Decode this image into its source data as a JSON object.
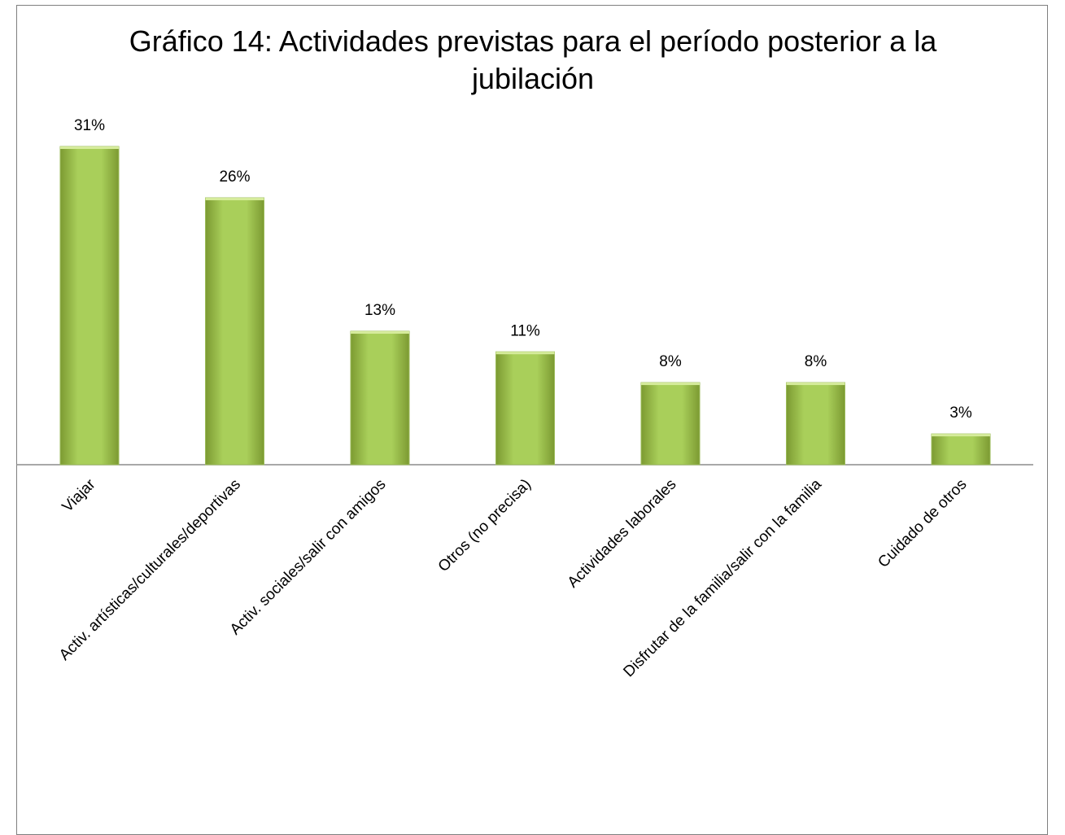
{
  "chart_data": {
    "type": "bar",
    "title": "Gráfico 14: Actividades previstas para el período posterior a la jubilación",
    "categories": [
      "Viajar",
      "Activ. artísticas/culturales/deportivas",
      "Activ. sociales/salir con amigos",
      "Otros (no precisa)",
      "Actividades laborales",
      "Disfrutar de la familia/salir con la familia",
      "Cuidado de otros"
    ],
    "values": [
      31,
      26,
      13,
      11,
      8,
      8,
      3
    ],
    "value_labels": [
      "31%",
      "26%",
      "13%",
      "11%",
      "8%",
      "8%",
      "3%"
    ],
    "color": "#9bbb59"
  }
}
